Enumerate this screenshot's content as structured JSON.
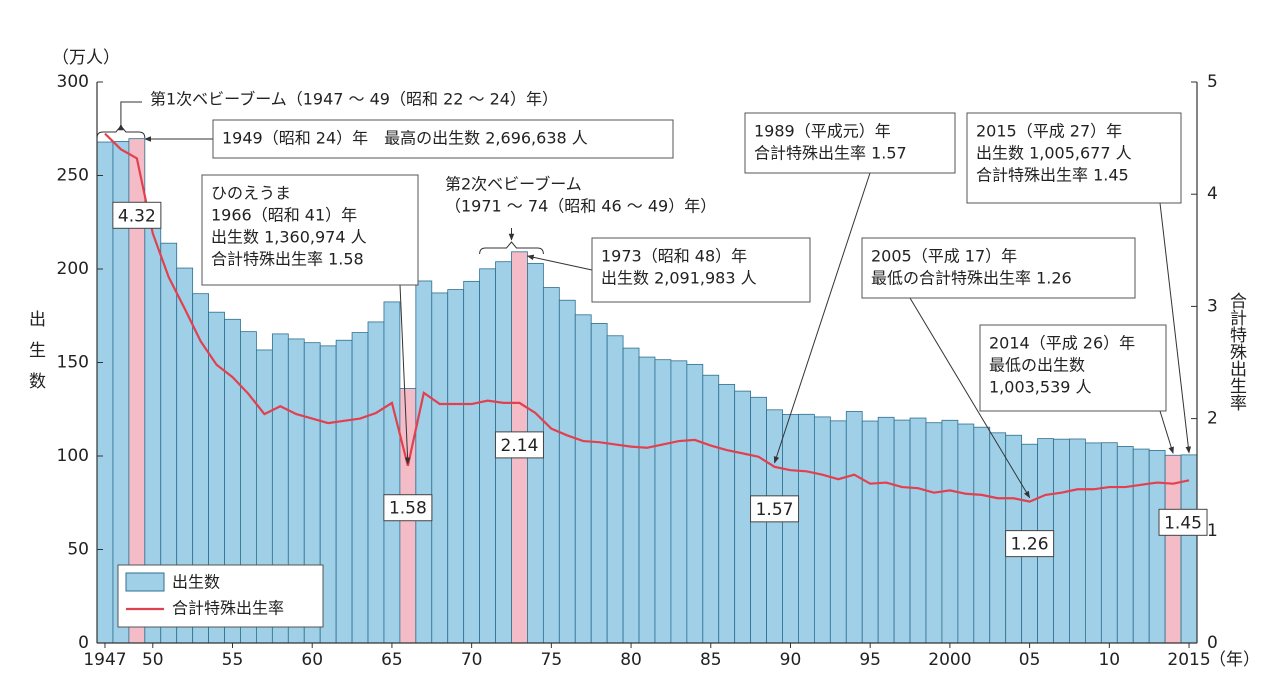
{
  "chart_data": {
    "type": "bar-line",
    "y_label": "（万人）",
    "y_title": "出生数",
    "y2_title": "合計特殊出生率",
    "x_unit": "（年）",
    "x": [
      1947,
      1948,
      1949,
      1950,
      1951,
      1952,
      1953,
      1954,
      1955,
      1956,
      1957,
      1958,
      1959,
      1960,
      1961,
      1962,
      1963,
      1964,
      1965,
      1966,
      1967,
      1968,
      1969,
      1970,
      1971,
      1972,
      1973,
      1974,
      1975,
      1976,
      1977,
      1978,
      1979,
      1980,
      1981,
      1982,
      1983,
      1984,
      1985,
      1986,
      1987,
      1988,
      1989,
      1990,
      1991,
      1992,
      1993,
      1994,
      1995,
      1996,
      1997,
      1998,
      1999,
      2000,
      2001,
      2002,
      2003,
      2004,
      2005,
      2006,
      2007,
      2008,
      2009,
      2010,
      2011,
      2012,
      2013,
      2014,
      2015
    ],
    "xlim": [
      1946.5,
      2015.5
    ],
    "xticks": [
      1947,
      {
        "value": 1950,
        "label": "50"
      },
      {
        "value": 1955,
        "label": "55"
      },
      {
        "value": 1960,
        "label": "60"
      },
      {
        "value": 1965,
        "label": "65"
      },
      {
        "value": 1970,
        "label": "70"
      },
      {
        "value": 1975,
        "label": "75"
      },
      {
        "value": 1980,
        "label": "80"
      },
      {
        "value": 1985,
        "label": "85"
      },
      {
        "value": 1990,
        "label": "90"
      },
      {
        "value": 1995,
        "label": "95"
      },
      2000,
      {
        "value": 2005,
        "label": "05"
      },
      {
        "value": 2010,
        "label": "10"
      },
      2015
    ],
    "ylim": [
      0,
      300
    ],
    "yticks": [
      0,
      50,
      100,
      150,
      200,
      250,
      300
    ],
    "y2lim": [
      0,
      5
    ],
    "y2ticks": [
      0,
      1,
      2,
      3,
      4,
      5
    ],
    "series": [
      {
        "name": "出生数",
        "color": "#9fd0e7",
        "values": [
          267.9,
          268.2,
          269.7,
          233.8,
          213.8,
          200.5,
          186.8,
          176.9,
          173.1,
          166.5,
          156.7,
          165.3,
          162.6,
          160.6,
          158.9,
          161.9,
          166.0,
          171.7,
          182.4,
          136.1,
          193.6,
          187.2,
          189.0,
          193.4,
          200.1,
          203.9,
          209.2,
          203.0,
          190.1,
          183.3,
          175.5,
          170.9,
          164.3,
          157.7,
          152.9,
          151.5,
          150.9,
          149.0,
          143.2,
          138.3,
          134.7,
          131.4,
          124.7,
          122.2,
          122.3,
          120.9,
          118.8,
          123.8,
          118.7,
          120.7,
          119.2,
          120.3,
          117.8,
          119.1,
          117.1,
          115.4,
          112.4,
          111.1,
          106.3,
          109.3,
          109.0,
          109.1,
          107.0,
          107.1,
          105.1,
          103.7,
          103.0,
          100.4,
          100.6
        ]
      },
      {
        "name": "合計特殊出生率",
        "color": "#e2404e",
        "axis": "y2",
        "values": [
          4.54,
          4.4,
          4.32,
          3.65,
          3.26,
          2.98,
          2.69,
          2.48,
          2.37,
          2.22,
          2.04,
          2.11,
          2.04,
          2.0,
          1.96,
          1.98,
          2.0,
          2.05,
          2.14,
          1.58,
          2.23,
          2.13,
          2.13,
          2.13,
          2.16,
          2.14,
          2.14,
          2.05,
          1.91,
          1.85,
          1.8,
          1.79,
          1.77,
          1.75,
          1.74,
          1.77,
          1.8,
          1.81,
          1.76,
          1.72,
          1.69,
          1.66,
          1.57,
          1.54,
          1.53,
          1.5,
          1.46,
          1.5,
          1.42,
          1.43,
          1.39,
          1.38,
          1.34,
          1.36,
          1.33,
          1.32,
          1.29,
          1.29,
          1.26,
          1.32,
          1.34,
          1.37,
          1.37,
          1.39,
          1.39,
          1.41,
          1.43,
          1.42,
          1.45
        ]
      }
    ],
    "highlight_x": [
      1949,
      1966,
      1973,
      2014
    ],
    "highlight_color": "#f4bcc6",
    "labeled_x": [
      1949,
      1966,
      1973,
      1989,
      2005,
      2015
    ],
    "annotations": [
      [
        "第1次ベビーブーム（1947 ～ 49（昭和 22 ～ 24）年）"
      ],
      [
        "1949（昭和 24）年　最高の出生数 2,696,638 人"
      ],
      [
        "ひのえうま",
        "1966（昭和 41）年",
        "出生数 1,360,974 人",
        "合計特殊出生率 1.58"
      ],
      [
        "第2次ベビーブーム",
        "（1971 ～ 74（昭和 46 ～ 49）年）"
      ],
      [
        "1973（昭和 48）年",
        "出生数 2,091,983 人"
      ],
      [
        "1989（平成元）年",
        "合計特殊出生率 1.57"
      ],
      [
        "2015（平成 27）年",
        "出生数 1,005,677 人",
        "合計特殊出生率 1.45"
      ],
      [
        "2005（平成 17）年",
        "最低の合計特殊出生率 1.26"
      ],
      [
        "2014（平成 26）年",
        "最低の出生数",
        "1,003,539 人"
      ]
    ]
  }
}
